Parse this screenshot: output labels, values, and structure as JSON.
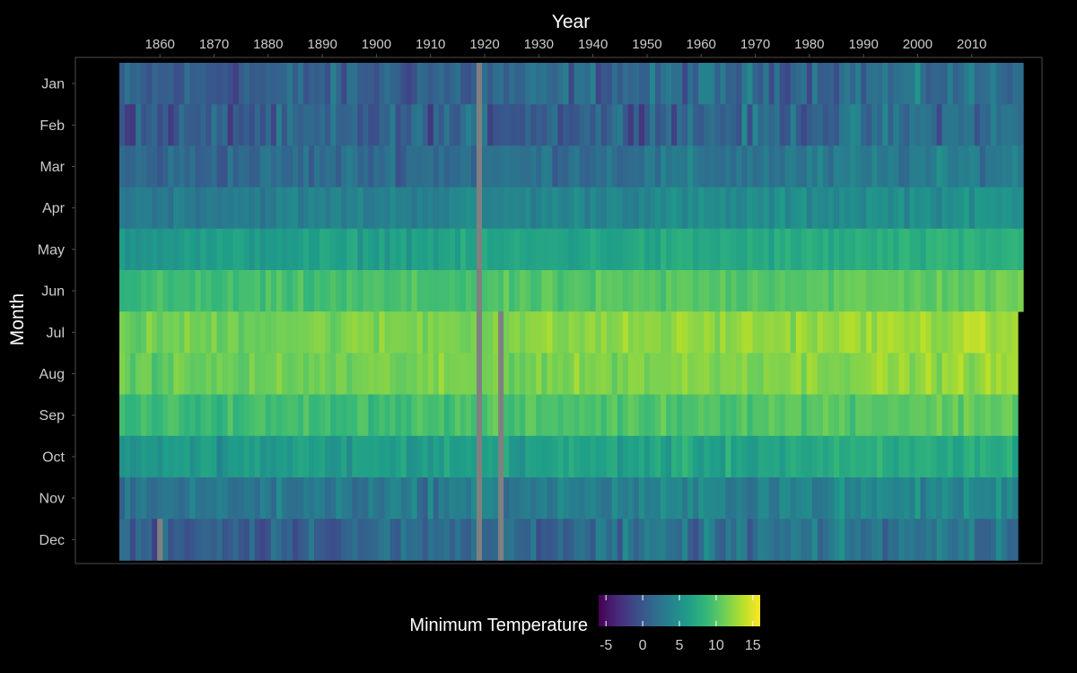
{
  "chart_data": {
    "type": "heatmap",
    "title": "",
    "xlabel": "Year",
    "ylabel": "Month",
    "x_axis_position": "top",
    "x_ticks": [
      1860,
      1870,
      1880,
      1890,
      1900,
      1910,
      1920,
      1930,
      1940,
      1950,
      1960,
      1970,
      1980,
      1990,
      2000,
      2010
    ],
    "x_range": [
      1853,
      2019
    ],
    "months": [
      "Jan",
      "Feb",
      "Mar",
      "Apr",
      "May",
      "Jun",
      "Jul",
      "Aug",
      "Sep",
      "Oct",
      "Nov",
      "Dec"
    ],
    "monthly_mean_min_temp": [
      1.2,
      1.0,
      2.2,
      4.1,
      6.8,
      9.8,
      12.0,
      11.6,
      9.7,
      6.5,
      3.4,
      1.7
    ],
    "monthly_spread": [
      2.3,
      2.3,
      1.6,
      1.1,
      1.0,
      1.0,
      1.1,
      1.1,
      1.1,
      1.4,
      1.7,
      2.1
    ],
    "warming_trend_per_century": 1.2,
    "last_year_by_month": [
      2019,
      2019,
      2019,
      2019,
      2019,
      2019,
      2018,
      2018,
      2018,
      2018,
      2018,
      2018
    ],
    "missing_cells": [
      {
        "month": "all",
        "year": 1919
      },
      {
        "month": "Jul-Dec",
        "year": 1923
      },
      {
        "month": "Dec",
        "year": 1860
      }
    ],
    "legend": {
      "title": "Minimum Temperature",
      "position": "bottom",
      "ticks": [
        -5,
        0,
        5,
        10,
        15
      ],
      "range": [
        -6,
        16
      ],
      "colormap": [
        "#440154",
        "#482878",
        "#3e4989",
        "#31688e",
        "#26828e",
        "#1f9e89",
        "#35b779",
        "#6ece58",
        "#b5de2b",
        "#fde725"
      ]
    },
    "missing_color": "#808080",
    "panel_border_color": "#4d4d4d",
    "text_color": "#ffffff",
    "tick_text_color": "#cccccc",
    "grid": false
  }
}
